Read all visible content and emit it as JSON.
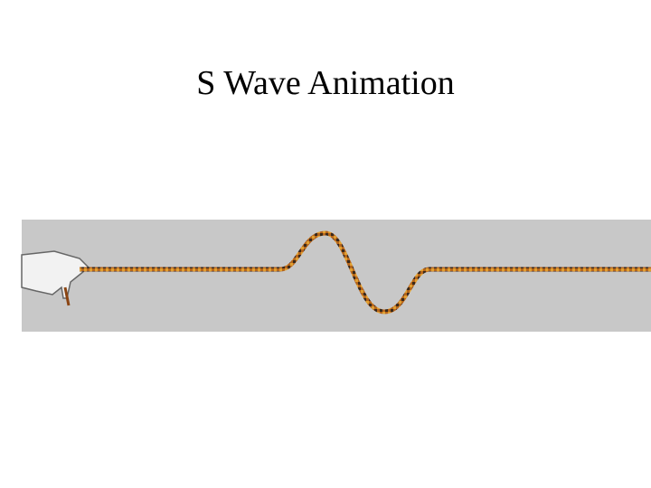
{
  "slide": {
    "title": "S Wave Animation"
  }
}
